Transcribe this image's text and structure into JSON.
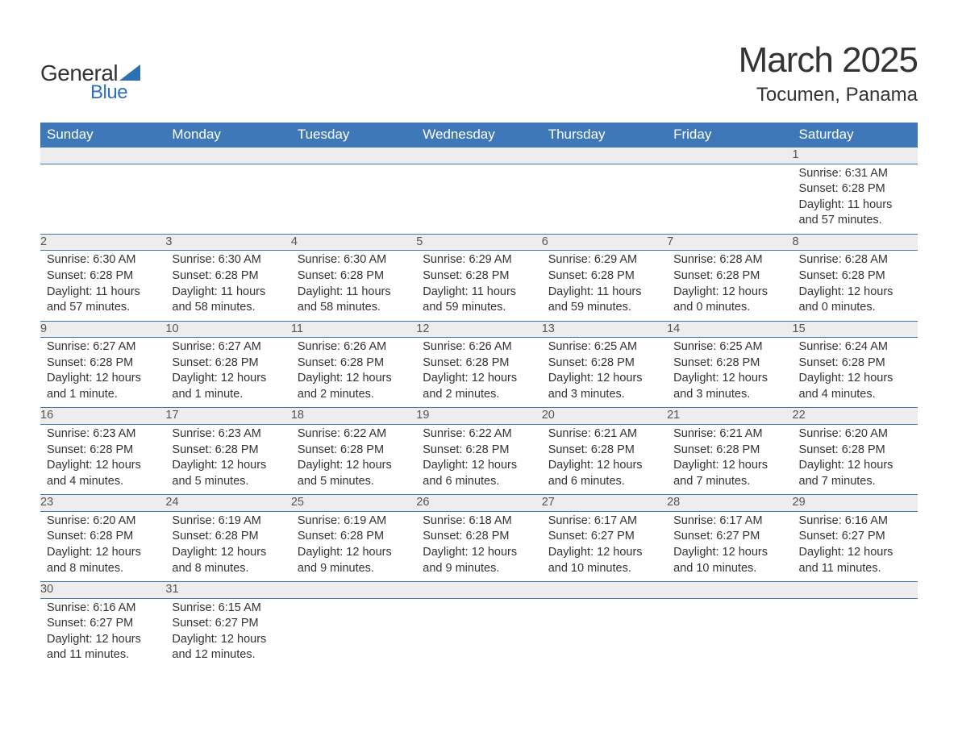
{
  "logo": {
    "text_general": "General",
    "text_blue": "Blue",
    "triangle_color": "#2f6fb4"
  },
  "title": "March 2025",
  "subtitle": "Tocumen, Panama",
  "colors": {
    "header_bg": "#3f78b8",
    "header_fg": "#ffffff",
    "daynum_bg": "#ededed",
    "border": "#3f78b8",
    "text": "#333333",
    "logo_blue": "#2f6fb4"
  },
  "day_headers": [
    "Sunday",
    "Monday",
    "Tuesday",
    "Wednesday",
    "Thursday",
    "Friday",
    "Saturday"
  ],
  "weeks": [
    [
      null,
      null,
      null,
      null,
      null,
      null,
      {
        "n": "1",
        "sr": "6:31 AM",
        "ss": "6:28 PM",
        "dl": "11 hours and 57 minutes."
      }
    ],
    [
      {
        "n": "2",
        "sr": "6:30 AM",
        "ss": "6:28 PM",
        "dl": "11 hours and 57 minutes."
      },
      {
        "n": "3",
        "sr": "6:30 AM",
        "ss": "6:28 PM",
        "dl": "11 hours and 58 minutes."
      },
      {
        "n": "4",
        "sr": "6:30 AM",
        "ss": "6:28 PM",
        "dl": "11 hours and 58 minutes."
      },
      {
        "n": "5",
        "sr": "6:29 AM",
        "ss": "6:28 PM",
        "dl": "11 hours and 59 minutes."
      },
      {
        "n": "6",
        "sr": "6:29 AM",
        "ss": "6:28 PM",
        "dl": "11 hours and 59 minutes."
      },
      {
        "n": "7",
        "sr": "6:28 AM",
        "ss": "6:28 PM",
        "dl": "12 hours and 0 minutes."
      },
      {
        "n": "8",
        "sr": "6:28 AM",
        "ss": "6:28 PM",
        "dl": "12 hours and 0 minutes."
      }
    ],
    [
      {
        "n": "9",
        "sr": "6:27 AM",
        "ss": "6:28 PM",
        "dl": "12 hours and 1 minute."
      },
      {
        "n": "10",
        "sr": "6:27 AM",
        "ss": "6:28 PM",
        "dl": "12 hours and 1 minute."
      },
      {
        "n": "11",
        "sr": "6:26 AM",
        "ss": "6:28 PM",
        "dl": "12 hours and 2 minutes."
      },
      {
        "n": "12",
        "sr": "6:26 AM",
        "ss": "6:28 PM",
        "dl": "12 hours and 2 minutes."
      },
      {
        "n": "13",
        "sr": "6:25 AM",
        "ss": "6:28 PM",
        "dl": "12 hours and 3 minutes."
      },
      {
        "n": "14",
        "sr": "6:25 AM",
        "ss": "6:28 PM",
        "dl": "12 hours and 3 minutes."
      },
      {
        "n": "15",
        "sr": "6:24 AM",
        "ss": "6:28 PM",
        "dl": "12 hours and 4 minutes."
      }
    ],
    [
      {
        "n": "16",
        "sr": "6:23 AM",
        "ss": "6:28 PM",
        "dl": "12 hours and 4 minutes."
      },
      {
        "n": "17",
        "sr": "6:23 AM",
        "ss": "6:28 PM",
        "dl": "12 hours and 5 minutes."
      },
      {
        "n": "18",
        "sr": "6:22 AM",
        "ss": "6:28 PM",
        "dl": "12 hours and 5 minutes."
      },
      {
        "n": "19",
        "sr": "6:22 AM",
        "ss": "6:28 PM",
        "dl": "12 hours and 6 minutes."
      },
      {
        "n": "20",
        "sr": "6:21 AM",
        "ss": "6:28 PM",
        "dl": "12 hours and 6 minutes."
      },
      {
        "n": "21",
        "sr": "6:21 AM",
        "ss": "6:28 PM",
        "dl": "12 hours and 7 minutes."
      },
      {
        "n": "22",
        "sr": "6:20 AM",
        "ss": "6:28 PM",
        "dl": "12 hours and 7 minutes."
      }
    ],
    [
      {
        "n": "23",
        "sr": "6:20 AM",
        "ss": "6:28 PM",
        "dl": "12 hours and 8 minutes."
      },
      {
        "n": "24",
        "sr": "6:19 AM",
        "ss": "6:28 PM",
        "dl": "12 hours and 8 minutes."
      },
      {
        "n": "25",
        "sr": "6:19 AM",
        "ss": "6:28 PM",
        "dl": "12 hours and 9 minutes."
      },
      {
        "n": "26",
        "sr": "6:18 AM",
        "ss": "6:28 PM",
        "dl": "12 hours and 9 minutes."
      },
      {
        "n": "27",
        "sr": "6:17 AM",
        "ss": "6:27 PM",
        "dl": "12 hours and 10 minutes."
      },
      {
        "n": "28",
        "sr": "6:17 AM",
        "ss": "6:27 PM",
        "dl": "12 hours and 10 minutes."
      },
      {
        "n": "29",
        "sr": "6:16 AM",
        "ss": "6:27 PM",
        "dl": "12 hours and 11 minutes."
      }
    ],
    [
      {
        "n": "30",
        "sr": "6:16 AM",
        "ss": "6:27 PM",
        "dl": "12 hours and 11 minutes."
      },
      {
        "n": "31",
        "sr": "6:15 AM",
        "ss": "6:27 PM",
        "dl": "12 hours and 12 minutes."
      },
      null,
      null,
      null,
      null,
      null
    ]
  ],
  "labels": {
    "sunrise": "Sunrise: ",
    "sunset": "Sunset: ",
    "daylight": "Daylight: "
  }
}
